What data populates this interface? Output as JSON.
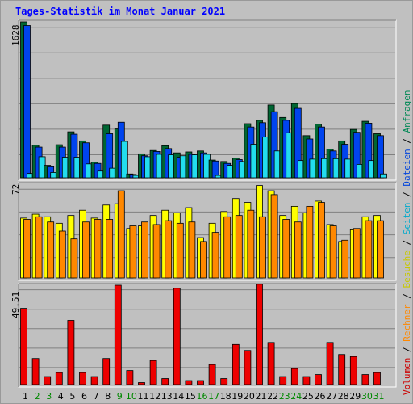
{
  "title": "Tages-Statistik im Monat Januar 2021",
  "side_legend": [
    {
      "label": "Volumen",
      "color": "#cc0000"
    },
    {
      "label": "Rechner",
      "color": "#ff8800"
    },
    {
      "label": "Besuche",
      "color": "#c8c800"
    },
    {
      "label": "Seiten",
      "color": "#00aacc"
    },
    {
      "label": "Dateien",
      "color": "#0044dd"
    },
    {
      "label": "Anfragen",
      "color": "#008855"
    }
  ],
  "separator": "/",
  "chart_data": {
    "type": "bar",
    "x": [
      "1",
      "2",
      "3",
      "4",
      "5",
      "6",
      "7",
      "8",
      "9",
      "10",
      "11",
      "12",
      "13",
      "14",
      "15",
      "16",
      "17",
      "18",
      "19",
      "20",
      "21",
      "22",
      "23",
      "24",
      "25",
      "26",
      "27",
      "28",
      "29",
      "30",
      "31"
    ],
    "weekend_color": "#008800",
    "weekend_days": [
      "2",
      "3",
      "9",
      "10",
      "16",
      "17",
      "23",
      "24",
      "30",
      "31"
    ],
    "panels": [
      {
        "name": "top",
        "ymax": 1628,
        "ymax_label": "1628",
        "series": [
          {
            "label": "Anfragen",
            "color": "#006633",
            "values": [
              1628,
              340,
              130,
              345,
              480,
              385,
              165,
              550,
              510,
              40,
              250,
              285,
              335,
              260,
              270,
              280,
              185,
              170,
              205,
              565,
              600,
              760,
              630,
              775,
              440,
              560,
              300,
              385,
              505,
              590,
              460
            ]
          },
          {
            "label": "Dateien",
            "color": "#0044ee",
            "values": [
              1590,
              320,
              115,
              320,
              455,
              365,
              150,
              460,
              580,
              35,
              230,
              275,
              305,
              215,
              245,
              260,
              175,
              150,
              190,
              530,
              575,
              690,
              600,
              725,
              405,
              530,
              280,
              350,
              475,
              570,
              440
            ]
          },
          {
            "label": "Seiten",
            "color": "#22ddee",
            "values": [
              45,
              220,
              55,
              215,
              215,
              145,
              70,
              100,
              380,
              25,
              220,
              245,
              240,
              230,
              240,
              245,
              25,
              130,
              170,
              350,
              425,
              280,
              470,
              180,
              195,
              200,
              200,
              195,
              140,
              180,
              40
            ]
          }
        ]
      },
      {
        "name": "middle",
        "ymax": 72,
        "ymax_label": "72",
        "series": [
          {
            "label": "Besuche",
            "color": "#ffff00",
            "values": [
              46,
              49,
              47,
              42,
              48,
              52,
              46,
              56,
              57,
              38,
              40,
              48,
              52,
              50,
              54,
              31,
              42,
              51,
              61,
              58,
              71,
              67,
              48,
              55,
              50,
              59,
              41,
              28,
              37,
              47,
              48
            ]
          },
          {
            "label": "Rechner",
            "color": "#ff8800",
            "values": [
              45,
              47,
              43,
              36,
              30,
              43,
              45,
              45,
              67,
              40,
              43,
              41,
              44,
              42,
              43,
              28,
              35,
              47,
              48,
              52,
              47,
              64,
              45,
              43,
              55,
              58,
              40,
              29,
              38,
              44,
              44
            ]
          }
        ]
      },
      {
        "name": "bottom",
        "ymax": 49.51,
        "ymax_label": "49.51",
        "series": [
          {
            "label": "Volumen",
            "color": "#ee0000",
            "values": [
              38,
              13,
              4,
              6,
              32,
              6,
              4,
              13,
              49.51,
              7,
              1,
              12,
              3,
              48,
              2,
              2,
              10,
              3,
              20,
              17,
              50,
              21,
              4,
              8,
              4,
              5,
              21,
              15,
              14,
              5,
              6
            ]
          }
        ]
      }
    ]
  }
}
